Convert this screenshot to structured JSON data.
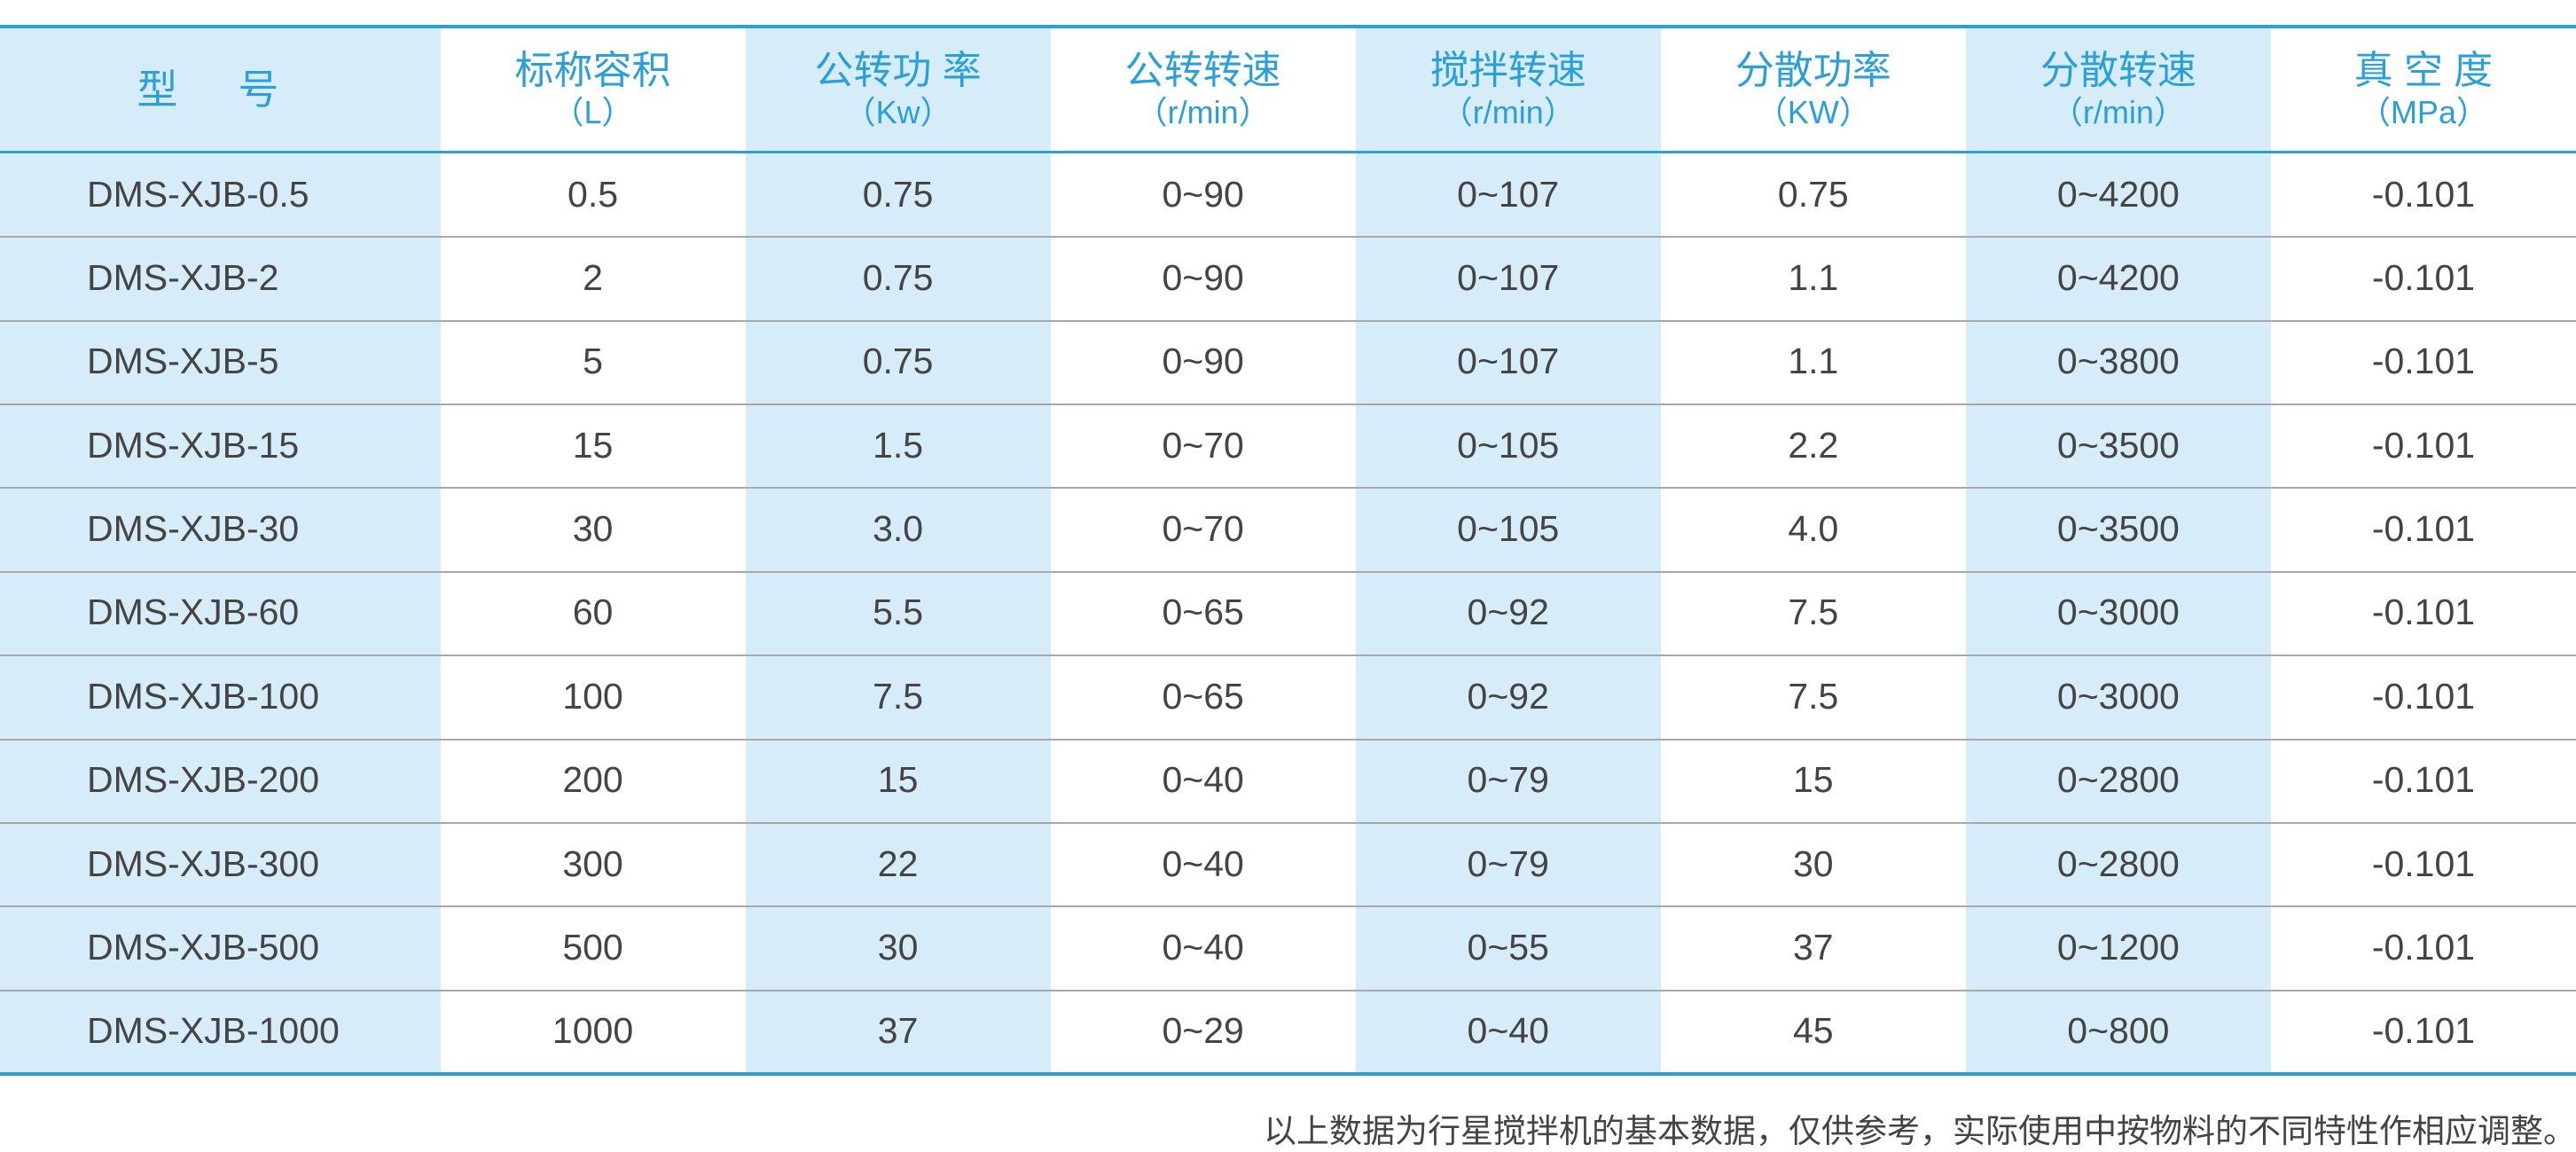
{
  "table": {
    "header": [
      {
        "title": "型 号"
      },
      {
        "title": "标称容积",
        "unit": "（L）"
      },
      {
        "title": "公转功 率",
        "unit": "（Kw）"
      },
      {
        "title": "公转转速",
        "unit": "（r/min）"
      },
      {
        "title": "搅拌转速",
        "unit": "（r/min）"
      },
      {
        "title": "分散功率",
        "unit": "（KW）"
      },
      {
        "title": "分散转速",
        "unit": "（r/min）"
      },
      {
        "title": "真 空 度",
        "unit": "（MPa）"
      }
    ],
    "rows": [
      [
        "DMS-XJB-0.5",
        "0.5",
        "0.75",
        "0~90",
        "0~107",
        "0.75",
        "0~4200",
        "-0.101"
      ],
      [
        "DMS-XJB-2",
        "2",
        "0.75",
        "0~90",
        "0~107",
        "1.1",
        "0~4200",
        "-0.101"
      ],
      [
        "DMS-XJB-5",
        "5",
        "0.75",
        "0~90",
        "0~107",
        "1.1",
        "0~3800",
        "-0.101"
      ],
      [
        "DMS-XJB-15",
        "15",
        "1.5",
        "0~70",
        "0~105",
        "2.2",
        "0~3500",
        "-0.101"
      ],
      [
        "DMS-XJB-30",
        "30",
        "3.0",
        "0~70",
        "0~105",
        "4.0",
        "0~3500",
        "-0.101"
      ],
      [
        "DMS-XJB-60",
        "60",
        "5.5",
        "0~65",
        "0~92",
        "7.5",
        "0~3000",
        "-0.101"
      ],
      [
        "DMS-XJB-100",
        "100",
        "7.5",
        "0~65",
        "0~92",
        "7.5",
        "0~3000",
        "-0.101"
      ],
      [
        "DMS-XJB-200",
        "200",
        "15",
        "0~40",
        "0~79",
        "15",
        "0~2800",
        "-0.101"
      ],
      [
        "DMS-XJB-300",
        "300",
        "22",
        "0~40",
        "0~79",
        "30",
        "0~2800",
        "-0.101"
      ],
      [
        "DMS-XJB-500",
        "500",
        "30",
        "0~40",
        "0~55",
        "37",
        "0~1200",
        "-0.101"
      ],
      [
        "DMS-XJB-1000",
        "1000",
        "37",
        "0~29",
        "0~40",
        "45",
        "0~800",
        "-0.101"
      ]
    ]
  },
  "note": "以上数据为行星搅拌机的基本数据，仅供参考，实际使用中按物料的不同特性作相应调整。"
}
